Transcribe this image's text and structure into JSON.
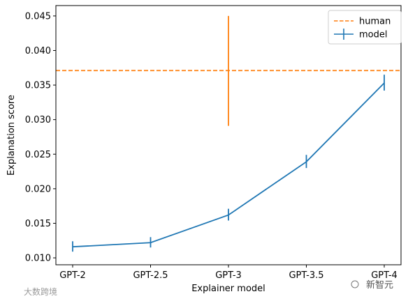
{
  "chart_data": {
    "type": "line",
    "xlabel": "Explainer model",
    "ylabel": "Explanation score",
    "categories": [
      "GPT-2",
      "GPT-2.5",
      "GPT-3",
      "GPT-3.5",
      "GPT-4"
    ],
    "ylim": [
      0.009,
      0.0465
    ],
    "yticks": [
      0.01,
      0.015,
      0.02,
      0.025,
      0.03,
      0.035,
      0.04,
      0.045
    ],
    "ytick_labels": [
      "0.010",
      "0.015",
      "0.020",
      "0.025",
      "0.030",
      "0.035",
      "0.040",
      "0.045"
    ],
    "grid": false,
    "legend": {
      "position": "top-right",
      "entries": [
        "human",
        "model"
      ]
    },
    "series": [
      {
        "name": "model",
        "color": "#1f77b4",
        "values": [
          0.0116,
          0.0122,
          0.0162,
          0.0239,
          0.0353
        ],
        "err_low": [
          0.0109,
          0.0115,
          0.0154,
          0.023,
          0.0342
        ],
        "err_high": [
          0.0124,
          0.013,
          0.0171,
          0.0249,
          0.0365
        ]
      }
    ],
    "reference_line": {
      "name": "human",
      "color": "#ff7f0e",
      "style": "dashed",
      "value": 0.0371,
      "err_category": "GPT-3",
      "err_low": 0.0291,
      "err_high": 0.045
    }
  },
  "watermarks": {
    "left": "大数跨境",
    "right": "新智元"
  }
}
